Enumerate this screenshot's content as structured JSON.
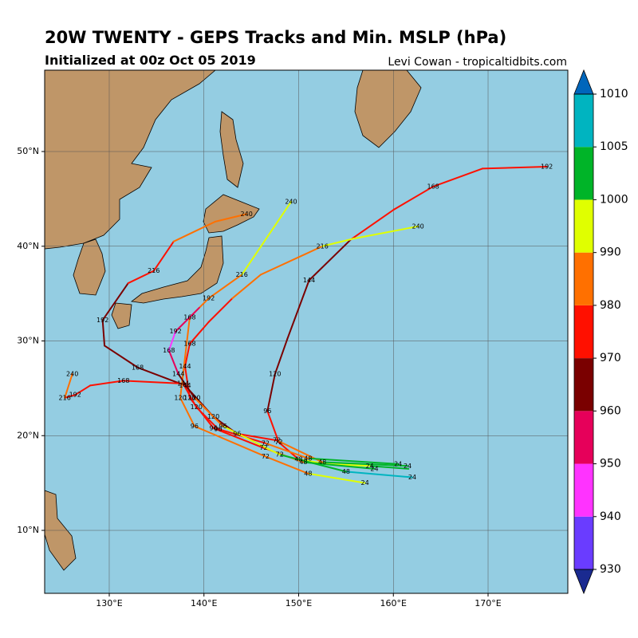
{
  "chart_data": {
    "type": "track-map",
    "title": "20W TWENTY - GEPS Tracks and Min. MSLP (hPa)",
    "subtitle": "Initialized at 00z Oct 05 2019",
    "credit": "Levi Cowan - tropicaltidbits.com",
    "xlim": [
      123.18,
      178.42
    ],
    "ylim": [
      3.35,
      58.59
    ],
    "xticks": [
      {
        "value": 130,
        "label": "130°E"
      },
      {
        "value": 140,
        "label": "140°E"
      },
      {
        "value": 150,
        "label": "150°E"
      },
      {
        "value": 160,
        "label": "160°E"
      },
      {
        "value": 170,
        "label": "170°E"
      }
    ],
    "yticks": [
      {
        "value": 10,
        "label": "10°N"
      },
      {
        "value": 20,
        "label": "20°N"
      },
      {
        "value": 30,
        "label": "30°N"
      },
      {
        "value": 40,
        "label": "40°N"
      },
      {
        "value": 50,
        "label": "50°N"
      }
    ],
    "grid": true,
    "colorbar": {
      "levels": [
        930,
        940,
        950,
        960,
        970,
        980,
        990,
        1000,
        1005,
        1010
      ],
      "colors": [
        "#6a3cff",
        "#ff33ff",
        "#e6005a",
        "#7a0000",
        "#ff1000",
        "#ff7000",
        "#e0ff00",
        "#00b428",
        "#00b4c0"
      ],
      "under_color": "#1a2a90",
      "over_color": "#0066bb"
    },
    "tracks": [
      {
        "lon": [
          161.6,
          157.5,
          153.0,
          150.0,
          147.9,
          146.7,
          147.5,
          148.8,
          151.1,
          155.5,
          160.1,
          164.2,
          169.4,
          176.2
        ],
        "lat": [
          16.5,
          16.8,
          17.0,
          17.5,
          19.3,
          22.6,
          26.5,
          30.2,
          36.4,
          40.7,
          43.9,
          46.3,
          48.2,
          48.4
        ],
        "pressure": [
          1000,
          995,
          990,
          975,
          970,
          965,
          960,
          960,
          965,
          970,
          975,
          975,
          975,
          980
        ],
        "hour_labels": [
          null,
          "24",
          null,
          "48",
          "72",
          "96",
          "120",
          null,
          "144",
          null,
          null,
          "168",
          null,
          "192"
        ]
      },
      {
        "lon": [
          161.5,
          152.5,
          147.7,
          143.5,
          141.0,
          138.0,
          133.0,
          129.5,
          129.3,
          132.0,
          134.7,
          136.8,
          141.2,
          144.5
        ],
        "lat": [
          16.8,
          17.2,
          19.5,
          20.2,
          22.0,
          25.3,
          27.2,
          29.5,
          32.2,
          36.1,
          37.4,
          40.5,
          42.6,
          43.4
        ],
        "pressure": [
          1000,
          985,
          975,
          965,
          962,
          960,
          962,
          965,
          968,
          970,
          975,
          982,
          985,
          988
        ],
        "hour_labels": [
          "24",
          "48",
          "72",
          "96",
          "120",
          "144",
          "168",
          null,
          "192",
          null,
          "216",
          null,
          null,
          "240"
        ]
      },
      {
        "lon": [
          160.5,
          151.0,
          146.5,
          141.5,
          139.2,
          137.8,
          131.5,
          128.0,
          126.4,
          125.3,
          126.1
        ],
        "lat": [
          17.0,
          17.6,
          19.2,
          20.7,
          23.0,
          25.5,
          25.8,
          25.3,
          24.3,
          24.0,
          26.5
        ],
        "pressure": [
          1000,
          980,
          972,
          970,
          970,
          970,
          972,
          975,
          978,
          980,
          982
        ],
        "hour_labels": [
          "24",
          "48",
          "72",
          "96",
          "120",
          "144",
          "168",
          null,
          "192",
          "216",
          "240"
        ]
      },
      {
        "lon": [
          158.0,
          150.5,
          146.3,
          141.0,
          138.5,
          138.0,
          138.5,
          140.5,
          143.0,
          146.0,
          152.5,
          155.8,
          162.6
        ],
        "lat": [
          16.5,
          17.2,
          18.7,
          20.8,
          24.0,
          27.3,
          29.7,
          32.0,
          34.5,
          37.0,
          40.0,
          40.8,
          42.1
        ],
        "pressure": [
          1000,
          985,
          975,
          972,
          972,
          972,
          975,
          978,
          980,
          982,
          990,
          995,
          1000
        ],
        "hour_labels": [
          "24",
          "48",
          "72",
          "96",
          "120",
          "144",
          "168",
          null,
          null,
          null,
          "216",
          null,
          "240"
        ]
      },
      {
        "lon": [
          157.0,
          151.0,
          146.5,
          139.0,
          137.5,
          138.5,
          140.5,
          144.0,
          149.2
        ],
        "lat": [
          15.0,
          16.0,
          17.8,
          21.0,
          24.0,
          32.5,
          34.5,
          37.0,
          44.7
        ],
        "pressure": [
          990,
          985,
          982,
          982,
          985,
          985,
          988,
          995,
          998
        ],
        "hour_labels": [
          "24",
          "48",
          "72",
          "96",
          "120",
          "168",
          "192",
          "216",
          "240"
        ]
      },
      {
        "lon": [
          162.0,
          155.0,
          148.0,
          142.0,
          139.0,
          137.3,
          136.3,
          137.0,
          139.5
        ],
        "lat": [
          15.6,
          16.2,
          18.0,
          21.0,
          24.0,
          26.5,
          29.0,
          31.0,
          33.5
        ],
        "pressure": [
          1005,
          1000,
          990,
          980,
          965,
          955,
          945,
          950,
          960
        ],
        "hour_labels": [
          "24",
          "48",
          "72",
          "96",
          "120",
          "144",
          "168",
          "192",
          null
        ]
      }
    ]
  }
}
